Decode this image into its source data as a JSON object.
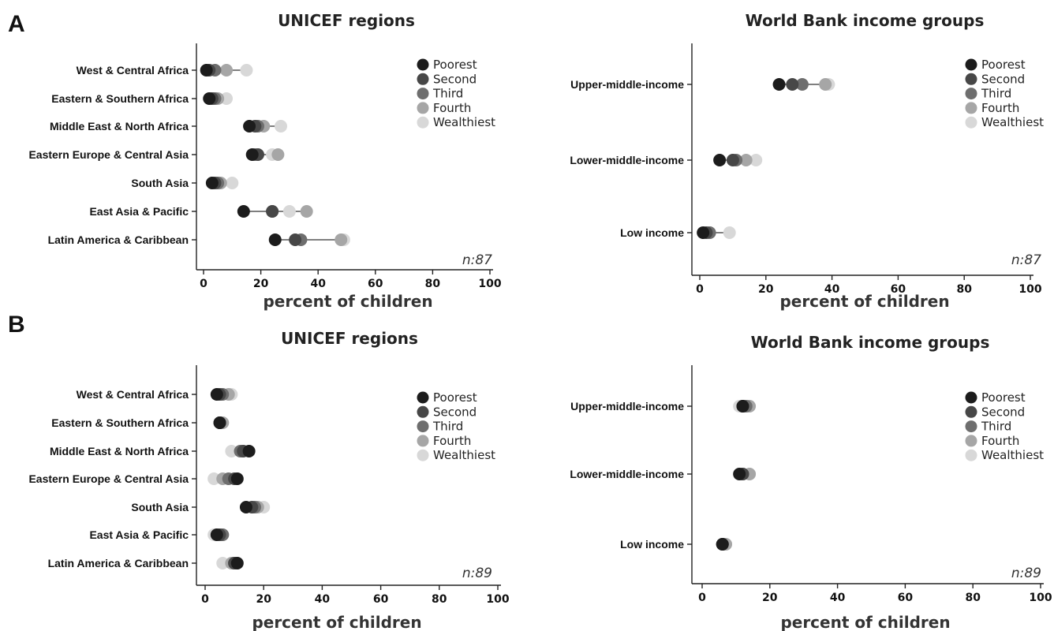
{
  "panels": [
    "A",
    "B"
  ],
  "legend": {
    "labels": [
      "Poorest",
      "Second",
      "Third",
      "Fourth",
      "Wealthiest"
    ],
    "colors": [
      "#1c1c1c",
      "#474747",
      "#6e6e6e",
      "#a6a6a6",
      "#d8d8d8"
    ]
  },
  "chart_data": [
    {
      "type": "scatter",
      "panel": "A",
      "title": "UNICEF regions",
      "xlabel": "percent of children",
      "xlim": [
        0,
        100
      ],
      "xticks": [
        0,
        20,
        40,
        60,
        80,
        100
      ],
      "n_label": "n:87",
      "categories": [
        "West & Central Africa",
        "Eastern & Southern Africa",
        "Middle East & North Africa",
        "Eastern Europe & Central Asia",
        "South Asia",
        "East Asia & Pacific",
        "Latin America & Caribbean"
      ],
      "series": [
        {
          "name": "Poorest",
          "values": [
            1,
            2,
            16,
            17,
            3,
            14,
            25
          ]
        },
        {
          "name": "Second",
          "values": [
            2,
            3,
            18,
            19,
            4,
            24,
            32
          ]
        },
        {
          "name": "Third",
          "values": [
            4,
            4,
            19,
            18,
            5,
            24,
            34
          ]
        },
        {
          "name": "Fourth",
          "values": [
            8,
            5,
            21,
            26,
            6,
            36,
            48
          ]
        },
        {
          "name": "Wealthiest",
          "values": [
            15,
            8,
            27,
            24,
            10,
            30,
            49
          ]
        }
      ]
    },
    {
      "type": "scatter",
      "panel": "A",
      "title": "World Bank income groups",
      "xlabel": "percent of children",
      "xlim": [
        0,
        100
      ],
      "xticks": [
        0,
        20,
        40,
        60,
        80,
        100
      ],
      "n_label": "n:87",
      "categories": [
        "Upper-middle-income",
        "Lower-middle-income",
        "Low income"
      ],
      "series": [
        {
          "name": "Poorest",
          "values": [
            24,
            6,
            1
          ]
        },
        {
          "name": "Second",
          "values": [
            28,
            10,
            2
          ]
        },
        {
          "name": "Third",
          "values": [
            31,
            11,
            3
          ]
        },
        {
          "name": "Fourth",
          "values": [
            38,
            14,
            3
          ]
        },
        {
          "name": "Wealthiest",
          "values": [
            39,
            17,
            9
          ]
        }
      ]
    },
    {
      "type": "scatter",
      "panel": "B",
      "title": "UNICEF regions",
      "xlabel": "percent of children",
      "xlim": [
        0,
        100
      ],
      "xticks": [
        0,
        20,
        40,
        60,
        80,
        100
      ],
      "n_label": "n:89",
      "categories": [
        "West & Central Africa",
        "Eastern & Southern Africa",
        "Middle East & North Africa",
        "Eastern Europe & Central Asia",
        "South Asia",
        "East Asia & Pacific",
        "Latin America & Caribbean"
      ],
      "series": [
        {
          "name": "Poorest",
          "values": [
            4,
            5,
            15,
            11,
            14,
            4,
            11
          ]
        },
        {
          "name": "Second",
          "values": [
            5,
            5,
            13,
            10,
            16,
            5,
            10
          ]
        },
        {
          "name": "Third",
          "values": [
            6,
            5,
            12,
            8,
            17,
            6,
            10
          ]
        },
        {
          "name": "Fourth",
          "values": [
            8,
            6,
            13,
            6,
            18,
            6,
            9
          ]
        },
        {
          "name": "Wealthiest",
          "values": [
            9,
            6,
            9,
            3,
            20,
            3,
            6
          ]
        }
      ]
    },
    {
      "type": "scatter",
      "panel": "B",
      "title": "World Bank income groups",
      "xlabel": "percent of children",
      "xlim": [
        0,
        100
      ],
      "xticks": [
        0,
        20,
        40,
        60,
        80,
        100
      ],
      "n_label": "n:89",
      "categories": [
        "Upper-middle-income",
        "Lower-middle-income",
        "Low income"
      ],
      "series": [
        {
          "name": "Poorest",
          "values": [
            12,
            11,
            6
          ]
        },
        {
          "name": "Second",
          "values": [
            12,
            12,
            6
          ]
        },
        {
          "name": "Third",
          "values": [
            13,
            12,
            6
          ]
        },
        {
          "name": "Fourth",
          "values": [
            14,
            14,
            7
          ]
        },
        {
          "name": "Wealthiest",
          "values": [
            11,
            14,
            7
          ]
        }
      ]
    }
  ]
}
